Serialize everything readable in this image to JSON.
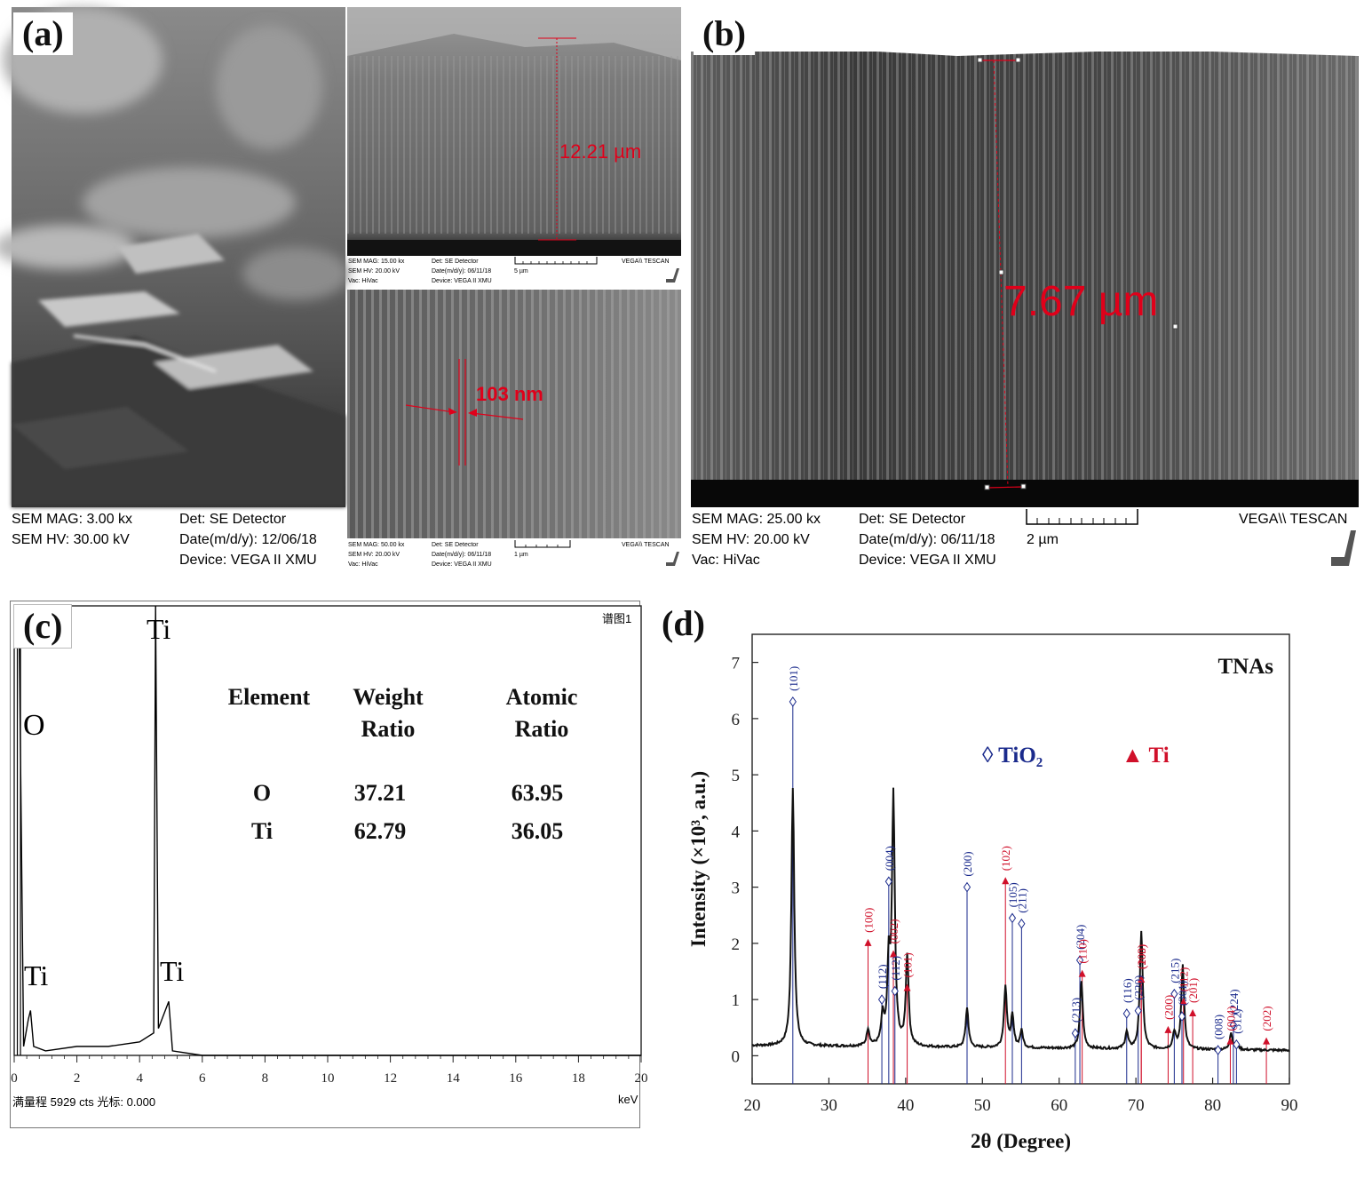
{
  "panels": {
    "a": {
      "label": "(a)",
      "main_meta": {
        "mag": "SEM MAG: 3.00 kx",
        "hv": "SEM HV: 30.00 kV",
        "det": "Det: SE Detector",
        "date": "Date(m/d/y): 12/06/18",
        "device": "Device: VEGA II XMU"
      },
      "inset_top": {
        "measurement": "12.21 µm",
        "mag": "SEM MAG: 15.00 kx",
        "hv": "SEM HV: 20.00 kV",
        "vac": "Vac: HiVac",
        "det": "Det: SE Detector",
        "date": "Date(m/d/y): 06/11/18",
        "device": "Device: VEGA II XMU",
        "scale": "5 µm",
        "brand": "VEGA\\\\ TESCAN"
      },
      "inset_bottom": {
        "measurement": "103 nm",
        "mag": "SEM MAG: 50.00 kx",
        "hv": "SEM HV: 20.00 kV",
        "vac": "Vac: HiVac",
        "det": "Det: SE Detector",
        "date": "Date(m/d/y): 06/11/18",
        "device": "Device: VEGA II XMU",
        "scale": "1 µm",
        "brand": "VEGA\\\\ TESCAN"
      }
    },
    "b": {
      "label": "(b)",
      "measurement": "7.67 µm",
      "mag": "SEM MAG: 25.00 kx",
      "hv": "SEM HV: 20.00 kV",
      "vac": "Vac: HiVac",
      "det": "Det: SE Detector",
      "date": "Date(m/d/y): 06/11/18",
      "device": "Device: VEGA II XMU",
      "scale": "2 µm",
      "brand": "VEGA\\\\ TESCAN"
    },
    "c": {
      "label": "(c)",
      "corner_tag": "谱图1",
      "footer": "满量程 5929 cts 光标: 0.000",
      "unit": "keV",
      "peak_labels": [
        "O",
        "Ti",
        "Ti",
        "Ti"
      ],
      "table": {
        "headers": [
          [
            "Element"
          ],
          [
            "Weight",
            "Ratio"
          ],
          [
            "Atomic",
            "Ratio"
          ]
        ],
        "rows": [
          [
            "O",
            "37.21",
            "63.95"
          ],
          [
            "Ti",
            "62.79",
            "36.05"
          ]
        ]
      }
    },
    "d": {
      "label": "(d)"
    }
  },
  "chart_data": [
    {
      "panel": "c",
      "type": "line",
      "title": "",
      "xlabel": "keV",
      "ylabel": "",
      "xlim": [
        0,
        20
      ],
      "x_ticks": [
        0,
        2,
        4,
        6,
        8,
        10,
        12,
        14,
        16,
        18,
        20
      ],
      "annotations": [
        {
          "text": "O",
          "x": 0.52
        },
        {
          "text": "Ti",
          "x": 0.45
        },
        {
          "text": "Ti",
          "x": 4.51
        },
        {
          "text": "Ti",
          "x": 4.93
        }
      ],
      "series": [
        {
          "values_description_points": [
            [
              0.05,
              1.0
            ],
            [
              0.15,
              1.0
            ],
            [
              0.3,
              0.02
            ],
            [
              0.45,
              0.08
            ],
            [
              0.52,
              0.1
            ],
            [
              0.62,
              0.02
            ],
            [
              1.0,
              0.01
            ],
            [
              2.0,
              0.02
            ],
            [
              3.0,
              0.02
            ],
            [
              4.0,
              0.03
            ],
            [
              4.45,
              0.05
            ],
            [
              4.51,
              1.0
            ],
            [
              4.6,
              0.06
            ],
            [
              4.93,
              0.12
            ],
            [
              5.05,
              0.01
            ],
            [
              6.0,
              0.0
            ],
            [
              20.0,
              0.0
            ]
          ]
        }
      ]
    },
    {
      "panel": "d",
      "type": "line",
      "title": "TNAs",
      "xlabel": "2θ (Degree)",
      "ylabel": "Intensity (×10³, a.u.)",
      "xlim": [
        20,
        90
      ],
      "ylim": [
        -0.5,
        7.5
      ],
      "x_ticks": [
        20,
        30,
        40,
        50,
        60,
        70,
        80,
        90
      ],
      "y_ticks": [
        0,
        1,
        2,
        3,
        4,
        5,
        6,
        7
      ],
      "legend": [
        {
          "marker": "◊",
          "text": "TiO₂",
          "color": "#1a2a8c"
        },
        {
          "marker": "▲",
          "text": "Ti",
          "color": "#d0102a"
        }
      ],
      "peaks": [
        {
          "x": 25.3,
          "y": 4.6
        },
        {
          "x": 35.1,
          "y": 0.3
        },
        {
          "x": 37.0,
          "y": 0.5
        },
        {
          "x": 37.8,
          "y": 1.4
        },
        {
          "x": 38.4,
          "y": 4.4
        },
        {
          "x": 40.2,
          "y": 1.6
        },
        {
          "x": 48.0,
          "y": 0.7
        },
        {
          "x": 53.0,
          "y": 1.1
        },
        {
          "x": 53.9,
          "y": 0.55
        },
        {
          "x": 55.1,
          "y": 0.3
        },
        {
          "x": 62.9,
          "y": 1.2
        },
        {
          "x": 68.8,
          "y": 0.3
        },
        {
          "x": 70.7,
          "y": 2.1
        },
        {
          "x": 75.0,
          "y": 0.3
        },
        {
          "x": 76.1,
          "y": 1.5
        },
        {
          "x": 82.4,
          "y": 0.3
        },
        {
          "x": 83.2,
          "y": 0.1
        }
      ],
      "reference_tio2": [
        {
          "hkl": "(101)",
          "x": 25.3,
          "y": 6.3
        },
        {
          "hkl": "(112)",
          "x": 36.9,
          "y": 1.0
        },
        {
          "hkl": "(004)",
          "x": 37.8,
          "y": 3.1
        },
        {
          "hkl": "(112)",
          "x": 38.6,
          "y": 1.15
        },
        {
          "hkl": "(200)",
          "x": 48.0,
          "y": 3.0
        },
        {
          "hkl": "(105)",
          "x": 53.9,
          "y": 2.45
        },
        {
          "hkl": "(211)",
          "x": 55.1,
          "y": 2.35
        },
        {
          "hkl": "(213)",
          "x": 62.1,
          "y": 0.4
        },
        {
          "hkl": "(204)",
          "x": 62.7,
          "y": 1.7
        },
        {
          "hkl": "(116)",
          "x": 68.8,
          "y": 0.75
        },
        {
          "hkl": "(220)",
          "x": 70.3,
          "y": 0.8
        },
        {
          "hkl": "(215)",
          "x": 75.0,
          "y": 1.1
        },
        {
          "hkl": "(301)",
          "x": 76.0,
          "y": 0.7
        },
        {
          "hkl": "(008)",
          "x": 80.7,
          "y": 0.1
        },
        {
          "hkl": "(224)",
          "x": 82.7,
          "y": 0.55
        },
        {
          "hkl": "(312)",
          "x": 83.1,
          "y": 0.2
        }
      ],
      "reference_ti": [
        {
          "hkl": "(100)",
          "x": 35.1,
          "y": 2.0
        },
        {
          "hkl": "(002)",
          "x": 38.4,
          "y": 1.8
        },
        {
          "hkl": "(101)",
          "x": 40.2,
          "y": 1.2
        },
        {
          "hkl": "(102)",
          "x": 53.0,
          "y": 3.1
        },
        {
          "hkl": "(110)",
          "x": 63.0,
          "y": 1.45
        },
        {
          "hkl": "(200)",
          "x": 70.7,
          "y": 1.35
        },
        {
          "hkl": "(103)",
          "x": 70.7,
          "y": 1.35
        },
        {
          "hkl": "(200)",
          "x": 74.2,
          "y": 0.45
        },
        {
          "hkl": "(112)",
          "x": 76.2,
          "y": 0.95
        },
        {
          "hkl": "(201)",
          "x": 77.4,
          "y": 0.75
        },
        {
          "hkl": "(004)",
          "x": 82.3,
          "y": 0.25
        },
        {
          "hkl": "(202)",
          "x": 87.0,
          "y": 0.25
        }
      ]
    }
  ]
}
